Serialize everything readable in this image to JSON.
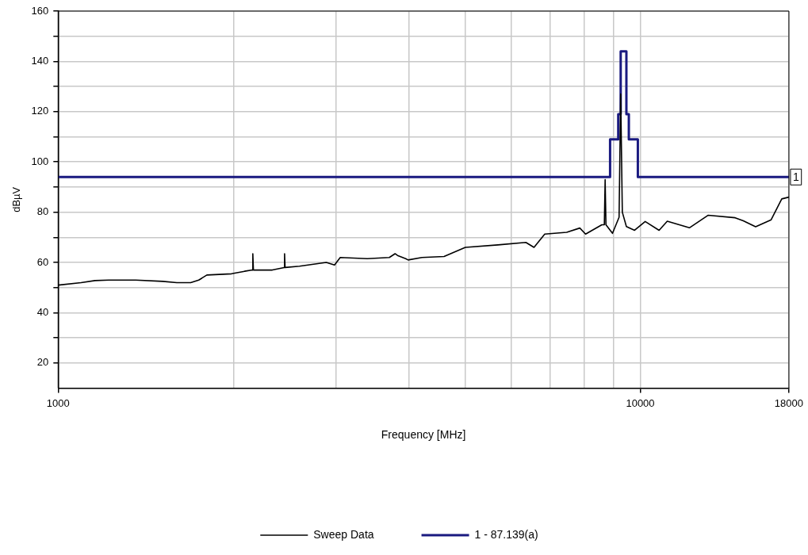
{
  "chart_data": {
    "type": "line",
    "xlabel": "Frequency [MHz]",
    "ylabel": "dBµV",
    "log": "x",
    "xlim": [
      1000,
      18000
    ],
    "xticks": [
      1000,
      {
        "value": 2000,
        "label": null
      },
      {
        "value": 3000,
        "label": null
      },
      {
        "value": 4000,
        "label": null
      },
      {
        "value": 5000,
        "label": null
      },
      {
        "value": 6000,
        "label": null
      },
      {
        "value": 7000,
        "label": null
      },
      {
        "value": 8000,
        "label": null
      },
      {
        "value": 9000,
        "label": null
      },
      10000,
      18000
    ],
    "ylim": [
      10,
      160
    ],
    "yticks": [
      20,
      {
        "value": 30,
        "label": null
      },
      40,
      {
        "value": 50,
        "label": null
      },
      60,
      {
        "value": 70,
        "label": null
      },
      80,
      {
        "value": 90,
        "label": null
      },
      100,
      {
        "value": 110,
        "label": null
      },
      120,
      {
        "value": 130,
        "label": null
      },
      140,
      {
        "value": 150,
        "label": null
      },
      160
    ],
    "grid": true,
    "legend": "bottom",
    "marker": "none",
    "line_style": "solid",
    "series": [
      {
        "name": "Sweep Data",
        "color": "#000000",
        "x": [
          1000,
          1095,
          1157,
          1222,
          1359,
          1513,
          1599,
          1689,
          1744,
          1801,
          1985,
          2090,
          2155,
          2160,
          2165,
          2333,
          2444,
          2449,
          2454,
          2597,
          2888,
          2984,
          3052,
          3396,
          3706,
          3791,
          3828,
          3954,
          3992,
          4217,
          4602,
          5006,
          5695,
          6360,
          6568,
          6853,
          7474,
          7873,
          8054,
          8590,
          8674,
          8702,
          8730,
          8959,
          9195,
          9254,
          9314,
          9465,
          9777,
          10196,
          10772,
          11125,
          12144,
          13084,
          14556,
          15031,
          15780,
          16779,
          17498,
          18000
        ],
        "values": [
          51,
          52,
          52.8,
          53,
          53,
          52.5,
          52,
          52,
          53,
          55,
          55.5,
          56.5,
          57,
          63.5,
          57,
          57,
          58,
          63.5,
          58,
          58.5,
          60,
          59,
          62,
          61.5,
          62,
          63.5,
          62.8,
          61.5,
          61,
          62,
          62.4,
          66,
          67,
          68,
          66,
          71.3,
          72,
          73.7,
          71.3,
          75,
          75,
          93,
          75,
          71.6,
          78,
          127,
          80,
          74.3,
          72.8,
          76.3,
          72.8,
          76.4,
          73.8,
          78.8,
          77.8,
          76.6,
          74.2,
          77,
          85.3,
          86
        ]
      },
      {
        "name": "1 - 87.139(a)",
        "color": "#1a1a80",
        "x": [
          1000,
          8874,
          8874,
          9165,
          9165,
          9254,
          9254,
          9465,
          9465,
          9557,
          9557,
          9904,
          9904,
          18000
        ],
        "values": [
          94,
          94,
          109,
          109,
          119,
          119,
          144,
          144,
          119,
          119,
          109,
          109,
          94,
          94
        ]
      }
    ],
    "annotations": [
      {
        "text": "1",
        "x": 18000,
        "y": 94
      }
    ]
  }
}
